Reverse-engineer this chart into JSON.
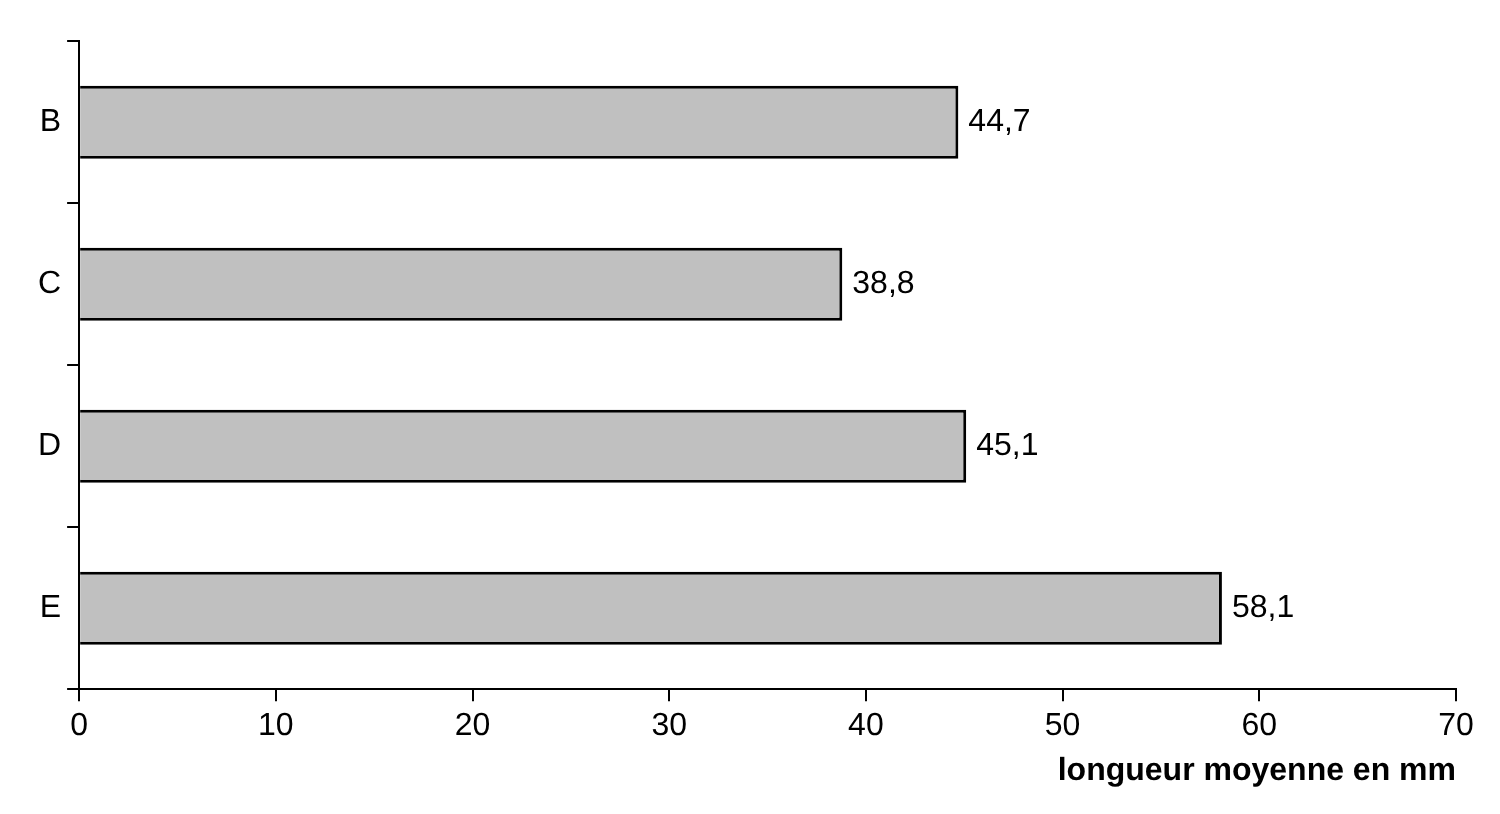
{
  "chart_data": {
    "type": "bar",
    "orientation": "horizontal",
    "xlabel": "longueur moyenne en mm",
    "categories": [
      "B",
      "C",
      "D",
      "E"
    ],
    "values": [
      44.7,
      38.8,
      45.1,
      58.1
    ],
    "value_labels": [
      "44,7",
      "38,8",
      "45,1",
      "58,1"
    ],
    "color": "#c0c0c0",
    "xlim": [
      0,
      70
    ],
    "xticks": [
      0,
      10,
      20,
      30,
      40,
      50,
      60,
      70
    ],
    "grid": false,
    "legend": false
  }
}
